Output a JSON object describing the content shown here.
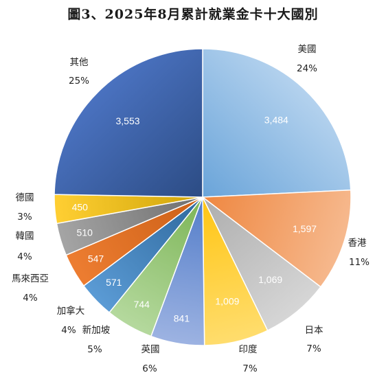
{
  "chart_data": {
    "type": "pie",
    "title": "圖3、2025年8月累計就業金卡十大國別",
    "slices": [
      {
        "name": "美國",
        "value": 3484,
        "percent": "24%",
        "colors": [
          "#5b9bd5",
          "#b4d2ee"
        ]
      },
      {
        "name": "香港",
        "value": 1597,
        "percent": "11%",
        "colors": [
          "#ed7d31",
          "#f6b98e"
        ]
      },
      {
        "name": "日本",
        "value": 1069,
        "percent": "7%",
        "colors": [
          "#a5a5a5",
          "#d6d6d6"
        ]
      },
      {
        "name": "印度",
        "value": 1009,
        "percent": "7%",
        "colors": [
          "#ffc000",
          "#ffdd6e"
        ]
      },
      {
        "name": "英國",
        "value": 841,
        "percent": "6%",
        "colors": [
          "#4472c4",
          "#9db3e2"
        ]
      },
      {
        "name": "新加坡",
        "value": 744,
        "percent": "5%",
        "colors": [
          "#70ad47",
          "#b5d99e"
        ]
      },
      {
        "name": "加拿大",
        "value": 571,
        "percent": "4%",
        "colors": [
          "#255e91",
          "#5b9bd5"
        ]
      },
      {
        "name": "馬來西亞",
        "value": 547,
        "percent": "4%",
        "colors": [
          "#c55a11",
          "#ed7d31"
        ]
      },
      {
        "name": "韓國",
        "value": 510,
        "percent": "4%",
        "colors": [
          "#636363",
          "#a5a5a5"
        ]
      },
      {
        "name": "德國",
        "value": 450,
        "percent": "3%",
        "colors": [
          "#c59c00",
          "#ffcf33"
        ]
      },
      {
        "name": "其他",
        "value": 3553,
        "percent": "25%",
        "colors": [
          "#264478",
          "#4a72c0"
        ]
      }
    ]
  }
}
